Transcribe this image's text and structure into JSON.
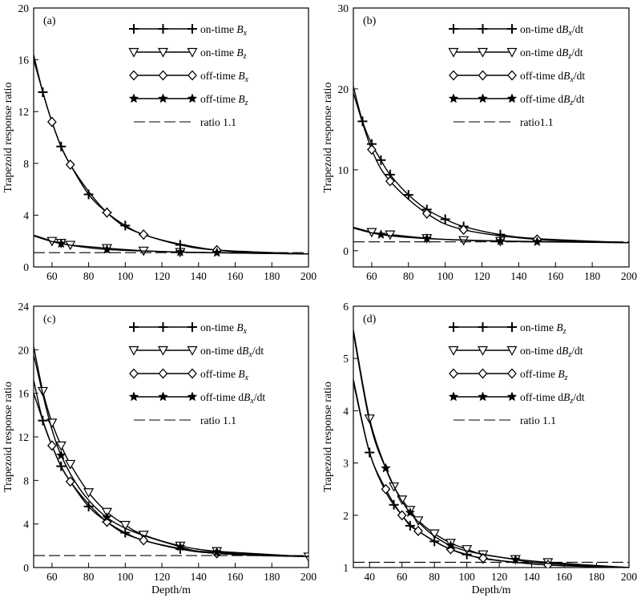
{
  "figure": {
    "shared_xlabel": "Depth/m"
  },
  "chart_data": [
    {
      "id": "a",
      "panel_label": "(a)",
      "type": "line",
      "xlabel": "",
      "ylabel": "Trapezoid response ratio",
      "xlim": [
        50,
        200
      ],
      "ylim": [
        0,
        20
      ],
      "xticks": [
        60,
        80,
        100,
        120,
        140,
        160,
        180,
        200
      ],
      "xtick_labels": [
        "60",
        "80",
        "100",
        "120",
        "140",
        "160",
        "180",
        "200"
      ],
      "yticks": [
        0,
        4,
        8,
        12,
        16,
        20
      ],
      "ytick_labels": [
        "0",
        "4",
        "8",
        "12",
        "16",
        "20"
      ],
      "legend_position": "top-right",
      "series": [
        {
          "name": "on-time Bx",
          "legend": {
            "pre": "on-time ",
            "sym": "B",
            "sub": "x",
            "post": ""
          },
          "marker": "plus",
          "x": [
            50,
            55,
            60,
            65,
            70,
            80,
            90,
            100,
            110,
            130,
            150,
            200
          ],
          "y": [
            16.4,
            13.5,
            11.2,
            9.3,
            7.9,
            5.6,
            4.2,
            3.2,
            2.5,
            1.7,
            1.3,
            1.0
          ],
          "marker_x": [
            55,
            65,
            80,
            90,
            100,
            110,
            130
          ]
        },
        {
          "name": "on-time Bz",
          "legend": {
            "pre": "on-time ",
            "sym": "B",
            "sub": "z",
            "post": ""
          },
          "marker": "triangle-down",
          "x": [
            50,
            60,
            65,
            70,
            90,
            110,
            130,
            150,
            200
          ],
          "y": [
            2.45,
            2.0,
            1.85,
            1.7,
            1.45,
            1.25,
            1.15,
            1.1,
            1.0
          ],
          "marker_x": [
            60,
            65,
            70,
            90,
            110,
            130
          ]
        },
        {
          "name": "off-time Bx",
          "legend": {
            "pre": "off-time ",
            "sym": "B",
            "sub": "x",
            "post": ""
          },
          "marker": "diamond",
          "x": [
            50,
            60,
            70,
            90,
            110,
            150,
            200
          ],
          "y": [
            16.0,
            11.2,
            7.9,
            4.2,
            2.5,
            1.3,
            1.0
          ],
          "marker_x": [
            60,
            70,
            90,
            110,
            150
          ]
        },
        {
          "name": "off-time Bz",
          "legend": {
            "pre": "off-time ",
            "sym": "B",
            "sub": "z",
            "post": ""
          },
          "marker": "star",
          "x": [
            50,
            65,
            90,
            130,
            150,
            200
          ],
          "y": [
            2.4,
            1.8,
            1.35,
            1.15,
            1.1,
            1.0
          ],
          "marker_x": [
            65,
            90,
            130,
            150
          ]
        },
        {
          "name": "ratio 1.1",
          "legend": {
            "pre": "ratio 1.1",
            "sym": "",
            "sub": "",
            "post": ""
          },
          "marker": "none",
          "style": "dashed",
          "x": [
            50,
            200
          ],
          "y": [
            1.1,
            1.1
          ],
          "marker_x": []
        }
      ]
    },
    {
      "id": "b",
      "panel_label": "(b)",
      "type": "line",
      "xlabel": "",
      "ylabel": "Trapezoid response ratio",
      "xlim": [
        50,
        200
      ],
      "ylim": [
        -2,
        30
      ],
      "xticks": [
        60,
        80,
        100,
        120,
        140,
        160,
        180,
        200
      ],
      "xtick_labels": [
        "60",
        "80",
        "100",
        "120",
        "140",
        "160",
        "180",
        "200"
      ],
      "yticks": [
        0,
        10,
        20,
        30
      ],
      "ytick_labels": [
        "0",
        "10",
        "20",
        "30"
      ],
      "legend_position": "top-right",
      "series": [
        {
          "name": "on-time dBx/dt",
          "legend": {
            "pre": "on-time d",
            "sym": "B",
            "sub": "x",
            "post": "/dt"
          },
          "marker": "plus",
          "x": [
            50,
            55,
            60,
            65,
            70,
            80,
            90,
            100,
            110,
            130,
            150,
            200
          ],
          "y": [
            20.3,
            16.0,
            13.2,
            11.2,
            9.4,
            6.9,
            5.1,
            3.9,
            3.0,
            2.0,
            1.5,
            1.0
          ],
          "marker_x": [
            55,
            60,
            65,
            70,
            80,
            90,
            100,
            110,
            130
          ]
        },
        {
          "name": "on-time dBz/dt",
          "legend": {
            "pre": "on-time d",
            "sym": "B",
            "sub": "z",
            "post": "/dt"
          },
          "marker": "triangle-down",
          "x": [
            50,
            60,
            65,
            70,
            90,
            110,
            130,
            200
          ],
          "y": [
            2.9,
            2.3,
            2.1,
            2.0,
            1.55,
            1.3,
            1.2,
            1.0
          ],
          "marker_x": [
            60,
            70,
            90,
            110,
            130
          ]
        },
        {
          "name": "off-time dBx/dt",
          "legend": {
            "pre": "off-time d",
            "sym": "B",
            "sub": "x",
            "post": "/dt"
          },
          "marker": "diamond",
          "x": [
            50,
            60,
            70,
            90,
            110,
            150,
            200
          ],
          "y": [
            19.5,
            12.5,
            8.6,
            4.6,
            2.6,
            1.4,
            1.0
          ],
          "marker_x": [
            60,
            70,
            90,
            110,
            150
          ]
        },
        {
          "name": "off-time dBz/dt",
          "legend": {
            "pre": "off-time d",
            "sym": "B",
            "sub": "z",
            "post": "/dt"
          },
          "marker": "star",
          "x": [
            50,
            65,
            90,
            130,
            150,
            200
          ],
          "y": [
            2.8,
            2.0,
            1.5,
            1.2,
            1.1,
            1.0
          ],
          "marker_x": [
            65,
            90,
            130,
            150
          ]
        },
        {
          "name": "ratio1.1",
          "legend": {
            "pre": "ratio1.1",
            "sym": "",
            "sub": "",
            "post": ""
          },
          "marker": "none",
          "style": "dashed",
          "x": [
            50,
            200
          ],
          "y": [
            1.1,
            1.1
          ],
          "marker_x": []
        }
      ]
    },
    {
      "id": "c",
      "panel_label": "(c)",
      "type": "line",
      "xlabel": "Depth/m",
      "ylabel": "Trapezoid response ratio",
      "xlim": [
        50,
        200
      ],
      "ylim": [
        0,
        24
      ],
      "xticks": [
        60,
        80,
        100,
        120,
        140,
        160,
        180,
        200
      ],
      "xtick_labels": [
        "60",
        "80",
        "100",
        "120",
        "140",
        "160",
        "180",
        "200"
      ],
      "yticks": [
        0,
        4,
        8,
        12,
        16,
        20,
        24
      ],
      "ytick_labels": [
        "0",
        "4",
        "8",
        "12",
        "16",
        "20",
        "24"
      ],
      "legend_position": "top-right",
      "series": [
        {
          "name": "on-time Bx",
          "legend": {
            "pre": "on-time ",
            "sym": "B",
            "sub": "x",
            "post": ""
          },
          "marker": "plus",
          "x": [
            50,
            55,
            60,
            65,
            70,
            80,
            90,
            100,
            110,
            130,
            150,
            200
          ],
          "y": [
            17.2,
            13.5,
            11.2,
            9.3,
            7.9,
            5.6,
            4.2,
            3.2,
            2.5,
            1.7,
            1.3,
            1.0
          ],
          "marker_x": [
            55,
            65,
            80,
            90,
            100,
            130
          ]
        },
        {
          "name": "on-time dBx/dt",
          "legend": {
            "pre": "on-time d",
            "sym": "B",
            "sub": "x",
            "post": "/dt"
          },
          "marker": "triangle-down",
          "x": [
            50,
            55,
            60,
            65,
            70,
            80,
            90,
            100,
            110,
            130,
            150,
            200
          ],
          "y": [
            20.3,
            16.2,
            13.3,
            11.2,
            9.5,
            6.9,
            5.1,
            3.9,
            3.0,
            2.0,
            1.5,
            1.0
          ],
          "marker_x": [
            55,
            60,
            65,
            70,
            80,
            90,
            100,
            110,
            130,
            150,
            200
          ]
        },
        {
          "name": "off-time Bx",
          "legend": {
            "pre": "off-time ",
            "sym": "B",
            "sub": "x",
            "post": ""
          },
          "marker": "diamond",
          "x": [
            50,
            60,
            70,
            90,
            110,
            150,
            200
          ],
          "y": [
            16.0,
            11.2,
            7.9,
            4.2,
            2.5,
            1.3,
            1.0
          ],
          "marker_x": [
            60,
            70,
            90,
            110,
            150
          ]
        },
        {
          "name": "off-time dBx/dt",
          "legend": {
            "pre": "off-time d",
            "sym": "B",
            "sub": "x",
            "post": "/dt"
          },
          "marker": "star",
          "x": [
            50,
            65,
            90,
            130,
            150,
            200
          ],
          "y": [
            19.5,
            10.3,
            4.6,
            1.9,
            1.4,
            1.0
          ],
          "marker_x": [
            65,
            90,
            130,
            150
          ]
        },
        {
          "name": "ratio 1.1",
          "legend": {
            "pre": "ratio 1.1",
            "sym": "",
            "sub": "",
            "post": ""
          },
          "marker": "none",
          "style": "dashed",
          "x": [
            50,
            200
          ],
          "y": [
            1.1,
            1.1
          ],
          "marker_x": []
        }
      ]
    },
    {
      "id": "d",
      "panel_label": "(d)",
      "type": "line",
      "xlabel": "Depth/m",
      "ylabel": "Trapezoid response ratio",
      "xlim": [
        30,
        200
      ],
      "ylim": [
        1,
        6
      ],
      "xticks": [
        40,
        60,
        80,
        100,
        120,
        140,
        160,
        180,
        200
      ],
      "xtick_labels": [
        "40",
        "60",
        "80",
        "100",
        "120",
        "140",
        "160",
        "180",
        "200"
      ],
      "yticks": [
        1,
        2,
        3,
        4,
        5,
        6
      ],
      "ytick_labels": [
        "1",
        "2",
        "3",
        "4",
        "5",
        "6"
      ],
      "legend_position": "top-right",
      "series": [
        {
          "name": "on-time Bz",
          "legend": {
            "pre": "on-time ",
            "sym": "B",
            "sub": "z",
            "post": ""
          },
          "marker": "plus",
          "x": [
            30,
            40,
            50,
            55,
            60,
            65,
            70,
            80,
            90,
            100,
            110,
            130,
            150,
            200
          ],
          "y": [
            4.6,
            3.2,
            2.45,
            2.2,
            2.0,
            1.8,
            1.7,
            1.5,
            1.35,
            1.25,
            1.17,
            1.1,
            1.05,
            1.0
          ],
          "marker_x": [
            40,
            55,
            65,
            80,
            100,
            110
          ]
        },
        {
          "name": "on-time dBz/dt",
          "legend": {
            "pre": "on-time d",
            "sym": "B",
            "sub": "z",
            "post": "/dt"
          },
          "marker": "triangle-down",
          "x": [
            30,
            40,
            50,
            55,
            60,
            65,
            70,
            80,
            90,
            100,
            110,
            130,
            150,
            200
          ],
          "y": [
            5.55,
            3.85,
            2.9,
            2.55,
            2.3,
            2.1,
            1.9,
            1.65,
            1.47,
            1.35,
            1.25,
            1.16,
            1.1,
            1.0
          ],
          "marker_x": [
            40,
            55,
            60,
            65,
            70,
            80,
            90,
            100,
            110,
            130,
            150
          ]
        },
        {
          "name": "off-time Bz",
          "legend": {
            "pre": "off-time ",
            "sym": "B",
            "sub": "z",
            "post": ""
          },
          "marker": "diamond",
          "x": [
            30,
            40,
            50,
            60,
            70,
            90,
            110,
            150,
            200
          ],
          "y": [
            4.55,
            3.2,
            2.5,
            2.0,
            1.7,
            1.35,
            1.18,
            1.05,
            1.0
          ],
          "marker_x": [
            50,
            60,
            70,
            90,
            110,
            150
          ]
        },
        {
          "name": "off-time dBz/dt",
          "legend": {
            "pre": "off-time d",
            "sym": "B",
            "sub": "z",
            "post": "/dt"
          },
          "marker": "star",
          "x": [
            30,
            40,
            50,
            65,
            90,
            130,
            150,
            200
          ],
          "y": [
            5.5,
            3.8,
            2.9,
            2.05,
            1.42,
            1.15,
            1.08,
            1.0
          ],
          "marker_x": [
            50,
            65,
            90,
            130
          ]
        },
        {
          "name": "ratio 1.1",
          "legend": {
            "pre": "ratio 1.1",
            "sym": "",
            "sub": "",
            "post": ""
          },
          "marker": "none",
          "style": "dashed",
          "x": [
            30,
            200
          ],
          "y": [
            1.1,
            1.1
          ],
          "marker_x": []
        }
      ]
    }
  ]
}
